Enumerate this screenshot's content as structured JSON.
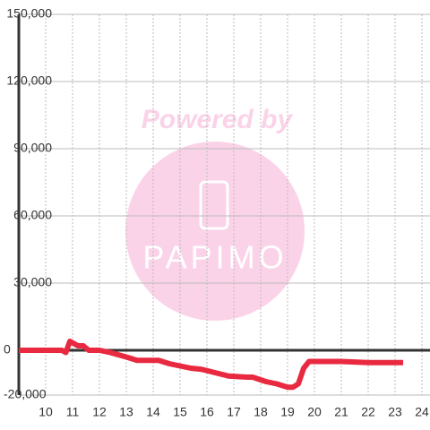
{
  "chart_data": {
    "type": "line",
    "watermark_title": "Powered by",
    "watermark_logo": "PAPIMO",
    "x": [
      9,
      10.6,
      10.75,
      10.9,
      11.2,
      11.4,
      11.6,
      12,
      12.4,
      13,
      13.4,
      14.2,
      14.6,
      15,
      15.4,
      15.8,
      16.3,
      16.8,
      17.5,
      17.7,
      18.2,
      18.6,
      19,
      19.2,
      19.4,
      19.6,
      19.8,
      21,
      22,
      23.3
    ],
    "series": [
      {
        "color": "#e8293f",
        "values": [
          0,
          0,
          -1000,
          4000,
          2000,
          2000,
          0,
          0,
          -1000,
          -3000,
          -4500,
          -4500,
          -6000,
          -7000,
          -8000,
          -8500,
          -10000,
          -11500,
          -12000,
          -12000,
          -14000,
          -15000,
          -16500,
          -16500,
          -15000,
          -8000,
          -5000,
          -5000,
          -5500,
          -5500
        ]
      }
    ],
    "xlim": [
      9,
      24.3
    ],
    "xticks": [
      10,
      11,
      12,
      13,
      14,
      15,
      16,
      17,
      18,
      19,
      20,
      21,
      22,
      23,
      24
    ],
    "ylim": [
      -20000,
      150000
    ],
    "yticks": [
      {
        "value": -20000,
        "label": "-20,000"
      },
      0,
      {
        "value": 30000,
        "label": "30,000"
      },
      {
        "value": 60000,
        "label": "60,000"
      },
      {
        "value": 90000,
        "label": "90,000"
      },
      {
        "value": 120000,
        "label": "120,000"
      },
      {
        "value": 150000,
        "label": "150,000"
      }
    ],
    "grid": true
  }
}
